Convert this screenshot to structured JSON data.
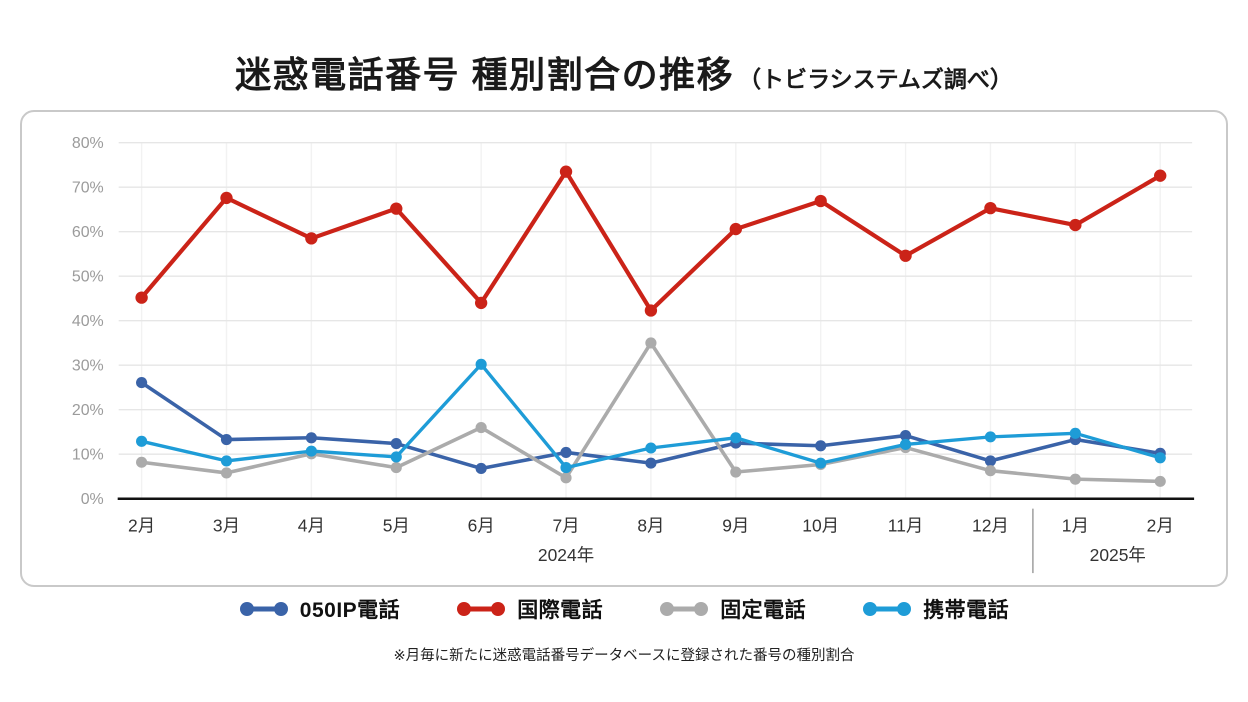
{
  "chart_data": {
    "type": "line",
    "title": "迷惑電話番号 種別割合の推移",
    "subtitle": "（トビラシステムズ調べ）",
    "note": "※月毎に新たに迷惑電話番号データベースに登録された番号の種別割合",
    "categories": [
      "2月",
      "3月",
      "4月",
      "5月",
      "6月",
      "7月",
      "8月",
      "9月",
      "10月",
      "11月",
      "12月",
      "1月",
      "2月"
    ],
    "year_groups": [
      {
        "label": "2024年",
        "from": 0,
        "to": 10
      },
      {
        "label": "2025年",
        "from": 11,
        "to": 12
      }
    ],
    "y_ticks": [
      "0%",
      "10%",
      "20%",
      "30%",
      "40%",
      "50%",
      "60%",
      "70%",
      "80%"
    ],
    "ylim": [
      0,
      80
    ],
    "grid": true,
    "legend_position": "bottom",
    "axis_color": "#111111",
    "tick_label_color": "#9b9b9b",
    "month_label_color": "#333333",
    "series": [
      {
        "name": "050IP電話",
        "color": "#3A63A8",
        "line_width": 3.6,
        "marker_r": 5.6,
        "values": [
          26.1,
          13.3,
          13.7,
          12.4,
          6.8,
          10.4,
          8.0,
          12.5,
          11.9,
          14.2,
          8.5,
          13.3,
          10.2
        ]
      },
      {
        "name": "国際電話",
        "color": "#CB2318",
        "line_width": 4.2,
        "marker_r": 6.2,
        "values": [
          45.2,
          67.6,
          58.5,
          65.2,
          44.0,
          73.5,
          42.3,
          60.6,
          66.9,
          54.6,
          65.3,
          61.5,
          72.6
        ]
      },
      {
        "name": "固定電話",
        "color": "#ABABAB",
        "line_width": 3.6,
        "marker_r": 5.6,
        "values": [
          8.2,
          5.8,
          10.1,
          7.0,
          16.0,
          4.7,
          35.0,
          6.0,
          7.7,
          11.5,
          6.3,
          4.4,
          3.9
        ]
      },
      {
        "name": "携帯電話",
        "color": "#1E9CD7",
        "line_width": 3.4,
        "marker_r": 5.6,
        "values": [
          12.9,
          8.5,
          10.7,
          9.4,
          30.2,
          7.0,
          11.4,
          13.7,
          8.0,
          12.2,
          13.9,
          14.7,
          9.2
        ]
      }
    ],
    "draw_order": [
      0,
      2,
      3,
      1
    ]
  }
}
